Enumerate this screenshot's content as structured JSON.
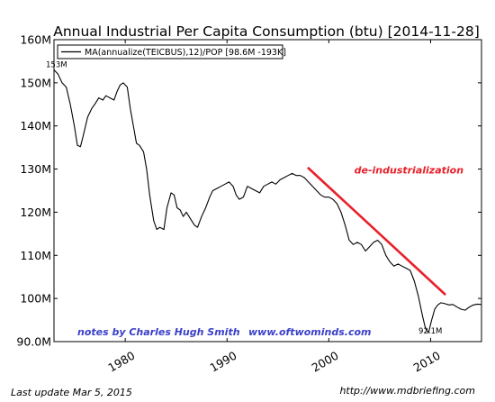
{
  "chart_data": {
    "type": "line",
    "title": "Annual Industrial Per Capita Consumption (btu)  [2014-11-28]",
    "legend": {
      "label": "MA(annualize(TEICBUS),12)/POP [98.6M -193K]",
      "placement": "top-left"
    },
    "xlim": [
      1973.0,
      2015.0
    ],
    "ylim": [
      90,
      160
    ],
    "y_ticks": [
      {
        "value": 160,
        "label": "160M"
      },
      {
        "value": 150,
        "label": "150M"
      },
      {
        "value": 140,
        "label": "140M"
      },
      {
        "value": 130,
        "label": "130M"
      },
      {
        "value": 120,
        "label": "120M"
      },
      {
        "value": 110,
        "label": "110M"
      },
      {
        "value": 100,
        "label": "100M"
      },
      {
        "value": 90,
        "label": "90.0M"
      }
    ],
    "x_ticks": [
      {
        "value": 1980,
        "label": "1980"
      },
      {
        "value": 1990,
        "label": "1990"
      },
      {
        "value": 2000,
        "label": "2000"
      },
      {
        "value": 2010,
        "label": "2010"
      }
    ],
    "grid": false,
    "series": [
      {
        "name": "MA(annualize(TEICBUS),12)/POP [98.6M -193K]",
        "color": "#000000",
        "x": [
          1973.0,
          1973.4,
          1973.8,
          1974.2,
          1974.6,
          1975.0,
          1975.3,
          1975.6,
          1975.9,
          1976.3,
          1976.7,
          1977.0,
          1977.4,
          1977.8,
          1978.1,
          1978.5,
          1978.9,
          1979.2,
          1979.5,
          1979.8,
          1980.2,
          1980.5,
          1980.8,
          1981.1,
          1981.4,
          1981.8,
          1982.1,
          1982.4,
          1982.8,
          1983.1,
          1983.4,
          1983.8,
          1984.1,
          1984.5,
          1984.8,
          1985.1,
          1985.4,
          1985.7,
          1986.0,
          1986.4,
          1986.8,
          1987.1,
          1987.5,
          1987.9,
          1988.3,
          1988.6,
          1989.0,
          1989.4,
          1989.8,
          1990.2,
          1990.6,
          1990.9,
          1991.2,
          1991.6,
          1992.0,
          1992.4,
          1992.8,
          1993.2,
          1993.6,
          1994.0,
          1994.4,
          1994.8,
          1995.2,
          1995.6,
          1996.0,
          1996.4,
          1996.8,
          1997.2,
          1997.6,
          1998.0,
          1998.4,
          1998.8,
          1999.2,
          1999.6,
          2000.0,
          2000.4,
          2000.8,
          2001.2,
          2001.6,
          2002.0,
          2002.4,
          2002.8,
          2003.2,
          2003.6,
          2004.0,
          2004.4,
          2004.8,
          2005.2,
          2005.6,
          2006.0,
          2006.4,
          2006.8,
          2007.2,
          2007.6,
          2008.0,
          2008.4,
          2008.8,
          2009.2,
          2009.5,
          2009.8,
          2010.1,
          2010.4,
          2010.7,
          2011.0,
          2011.4,
          2011.8,
          2012.2,
          2012.6,
          2013.0,
          2013.4,
          2013.8,
          2014.2,
          2014.6,
          2015.0
        ],
        "y": [
          153.0,
          152.0,
          150.0,
          149.0,
          145.0,
          140.0,
          135.5,
          135.2,
          138.0,
          142.0,
          144.0,
          145.0,
          146.5,
          146.0,
          147.0,
          146.5,
          146.0,
          148.0,
          149.5,
          150.0,
          149.0,
          144.0,
          140.0,
          136.0,
          135.5,
          134.0,
          130.0,
          124.0,
          118.0,
          116.0,
          116.5,
          116.0,
          121.0,
          124.5,
          124.0,
          121.0,
          120.5,
          119.0,
          120.0,
          118.5,
          117.0,
          116.5,
          119.0,
          121.0,
          123.5,
          125.0,
          125.5,
          126.0,
          126.5,
          127.0,
          126.0,
          124.0,
          123.0,
          123.5,
          126.0,
          125.5,
          125.0,
          124.5,
          126.0,
          126.5,
          127.0,
          126.5,
          127.5,
          128.0,
          128.5,
          129.0,
          128.5,
          128.5,
          128.0,
          127.0,
          126.0,
          125.0,
          124.0,
          123.5,
          123.5,
          123.0,
          122.0,
          120.0,
          117.0,
          113.5,
          112.5,
          113.0,
          112.5,
          111.0,
          112.0,
          113.0,
          113.5,
          112.5,
          110.0,
          108.5,
          107.5,
          108.0,
          107.5,
          107.0,
          106.5,
          104.0,
          100.5,
          96.0,
          93.0,
          92.1,
          95.0,
          97.5,
          98.5,
          99.0,
          98.8,
          98.5,
          98.6,
          98.0,
          97.5,
          97.3,
          98.0,
          98.5,
          98.7,
          98.6
        ]
      }
    ],
    "overlays": [
      {
        "kind": "trend-line",
        "color": "#e8202a",
        "x": [
          1998.0,
          2011.4
        ],
        "y": [
          130.2,
          101.0
        ]
      }
    ],
    "annotations": [
      {
        "text": "153M",
        "x": 1973.0,
        "y": 153.0
      },
      {
        "text": "92.1M",
        "x": 2009.8,
        "y": 92.1
      },
      {
        "text": "de-industrialization",
        "x": 2002.5,
        "y": 129.0
      }
    ],
    "notes": [
      "notes by Charles Hugh Smith",
      "www.oftwominds.com"
    ]
  },
  "footer": {
    "last_update": "Last update Mar  5, 2015",
    "source_url": "http://www.mdbriefing.com"
  }
}
